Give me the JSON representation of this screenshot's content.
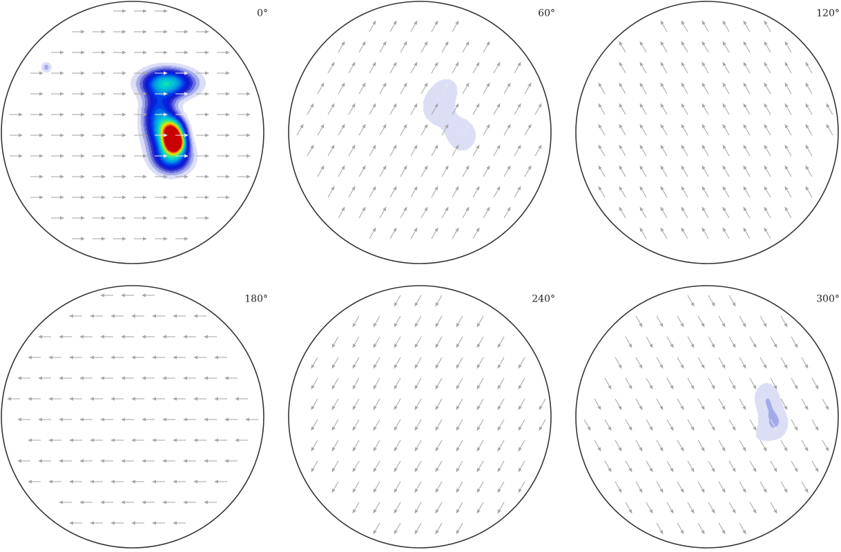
{
  "colors": {
    "outline": "#333333",
    "arrow": "#a8a8a8",
    "arrow_on_density": "#e6e6ee"
  },
  "chart_data": [
    {
      "type": "pole-figure",
      "label": "0°",
      "arrow_direction_deg": 0,
      "density_max": 1.0,
      "density_clusters": [
        {
          "cx": 0.27,
          "cy": 0.38,
          "sx": 0.13,
          "sy": 0.07,
          "weight": 0.55
        },
        {
          "cx": 0.3,
          "cy": 0.0,
          "sx": 0.06,
          "sy": 0.07,
          "weight": 1.0
        },
        {
          "cx": 0.32,
          "cy": -0.08,
          "sx": 0.05,
          "sy": 0.05,
          "weight": 0.95
        },
        {
          "cx": 0.2,
          "cy": 0.1,
          "sx": 0.08,
          "sy": 0.15,
          "weight": 0.45
        },
        {
          "cx": 0.3,
          "cy": -0.18,
          "sx": 0.09,
          "sy": 0.08,
          "weight": 0.5
        },
        {
          "cx": -0.66,
          "cy": 0.5,
          "sx": 0.03,
          "sy": 0.03,
          "weight": 0.12
        }
      ]
    },
    {
      "type": "pole-figure",
      "label": "60°",
      "arrow_direction_deg": 60,
      "density_max": 0.32,
      "density_clusters": [
        {
          "cx": 0.13,
          "cy": 0.2,
          "sx": 0.1,
          "sy": 0.12,
          "weight": 0.28
        },
        {
          "cx": 0.32,
          "cy": -0.02,
          "sx": 0.09,
          "sy": 0.1,
          "weight": 0.3
        },
        {
          "cx": 0.22,
          "cy": 0.35,
          "sx": 0.08,
          "sy": 0.08,
          "weight": 0.15
        }
      ]
    },
    {
      "type": "pole-figure",
      "label": "120°",
      "arrow_direction_deg": 120,
      "density_max": 0,
      "density_clusters": []
    },
    {
      "type": "pole-figure",
      "label": "180°",
      "arrow_direction_deg": 180,
      "density_max": 0,
      "density_clusters": []
    },
    {
      "type": "pole-figure",
      "label": "240°",
      "arrow_direction_deg": 240,
      "density_max": 0,
      "density_clusters": []
    },
    {
      "type": "pole-figure",
      "label": "300°",
      "arrow_direction_deg": -60,
      "density_max": 0.32,
      "density_clusters": [
        {
          "cx": 0.45,
          "cy": 0.15,
          "sx": 0.08,
          "sy": 0.1,
          "weight": 0.28
        },
        {
          "cx": 0.52,
          "cy": -0.05,
          "sx": 0.08,
          "sy": 0.1,
          "weight": 0.3
        },
        {
          "cx": 0.38,
          "cy": -0.15,
          "sx": 0.07,
          "sy": 0.08,
          "weight": 0.12
        }
      ]
    }
  ]
}
